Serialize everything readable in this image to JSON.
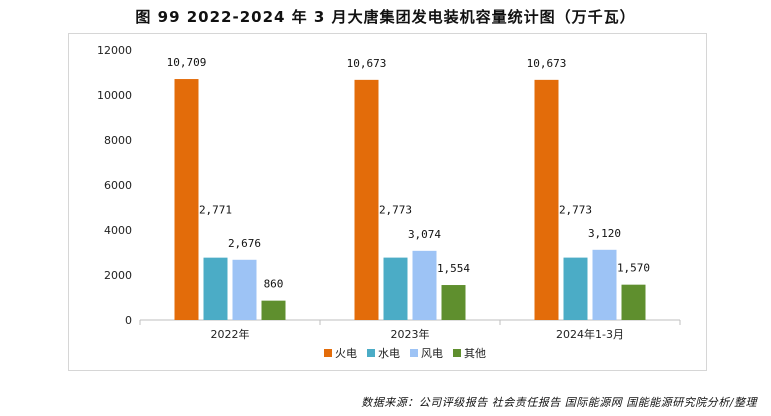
{
  "title": "图 99 2022-2024 年 3 月大唐集团发电装机容量统计图（万千瓦）",
  "source": "数据来源：公司评级报告 社会责任报告 国际能源网 国能能源研究院分析/整理",
  "chart_data": {
    "type": "bar",
    "title": "图 99 2022-2024 年 3 月大唐集团发电装机容量统计图（万千瓦）",
    "xlabel": "",
    "ylabel": "",
    "ylim": [
      0,
      12000
    ],
    "yticks": [
      0,
      2000,
      4000,
      6000,
      8000,
      10000,
      12000
    ],
    "ytick_labels": [
      "0",
      "2000",
      "4000",
      "6000",
      "8000",
      "10000",
      "12000"
    ],
    "grid": false,
    "legend_position": "bottom",
    "categories": [
      "2022年",
      "2023年",
      "2024年1-3月"
    ],
    "series": [
      {
        "name": "火电",
        "color": "#E36C0A",
        "values": [
          10709,
          10673,
          10673
        ],
        "labels": [
          "10,709",
          "10,673",
          "10,673"
        ]
      },
      {
        "name": "水电",
        "color": "#4BACC6",
        "values": [
          2771,
          2773,
          2773
        ],
        "labels": [
          "2,771",
          "2,773",
          "2,773"
        ]
      },
      {
        "name": "风电",
        "color": "#9DC3F5",
        "values": [
          2676,
          3074,
          3120
        ],
        "labels": [
          "2,676",
          "3,074",
          "3,120"
        ]
      },
      {
        "name": "其他",
        "color": "#5F8F2E",
        "values": [
          860,
          1554,
          1570
        ],
        "labels": [
          "860",
          "1,554",
          "1,570"
        ]
      }
    ]
  }
}
